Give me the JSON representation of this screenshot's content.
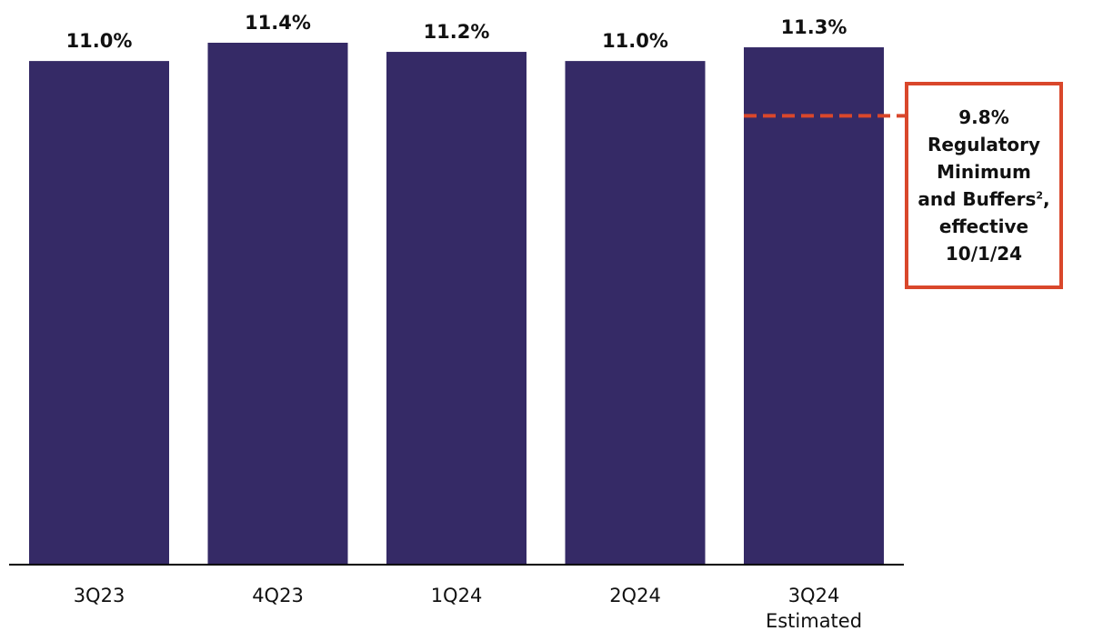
{
  "chart_data": {
    "type": "bar",
    "categories": [
      "3Q23",
      "4Q23",
      "1Q24",
      "2Q24",
      "3Q24"
    ],
    "category_sublabels": [
      "",
      "",
      "",
      "",
      "Estimated"
    ],
    "values": [
      11.0,
      11.4,
      11.2,
      11.0,
      11.3
    ],
    "data_labels": [
      "11.0%",
      "11.4%",
      "11.2%",
      "11.0%",
      "11.3%"
    ],
    "bar_color": "#352a66",
    "ylim": [
      0,
      11.4
    ],
    "grid": false,
    "reference_line": {
      "value": 9.8,
      "color": "#d9472b",
      "style": "dashed",
      "label_lines": [
        "9.8%",
        "Regulatory",
        "Minimum",
        "and Buffers",
        "effective",
        "10/1/24"
      ],
      "footnote_marker": "2",
      "footnote_suffix": ","
    }
  }
}
